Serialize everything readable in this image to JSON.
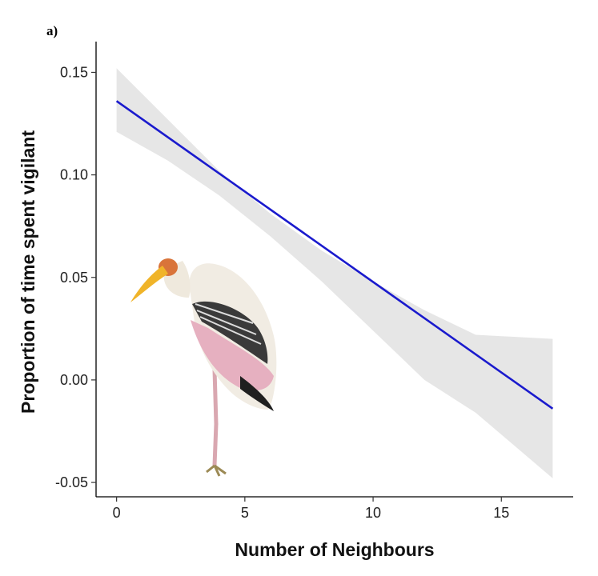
{
  "panel_label": "a)",
  "chart_data": {
    "type": "line",
    "xlabel": "Number of Neighbours",
    "ylabel": "Proportion of time spent vigilant",
    "xlim": [
      -0.8,
      17.8
    ],
    "ylim": [
      -0.057,
      0.165
    ],
    "x_ticks": [
      0,
      5,
      10,
      15
    ],
    "x_tick_labels": [
      "0",
      "5",
      "10",
      "15"
    ],
    "y_ticks": [
      -0.05,
      0.0,
      0.05,
      0.1,
      0.15
    ],
    "y_tick_labels": [
      "-0.05",
      "0.00",
      "0.05",
      "0.10",
      "0.15"
    ],
    "grid": false,
    "series": [
      {
        "x": [
          0,
          17
        ],
        "y": [
          0.136,
          -0.014
        ],
        "color": "#1a1acd",
        "ci_band": {
          "x": [
            0,
            2,
            4,
            6,
            8,
            10,
            12,
            14,
            17
          ],
          "lower": [
            0.121,
            0.107,
            0.09,
            0.07,
            0.048,
            0.024,
            0.0,
            -0.016,
            -0.048
          ],
          "upper": [
            0.152,
            0.127,
            0.102,
            0.081,
            0.063,
            0.048,
            0.034,
            0.022,
            0.02
          ],
          "color": "#e6e6e6"
        }
      }
    ],
    "image": "painted-stork-photo"
  }
}
